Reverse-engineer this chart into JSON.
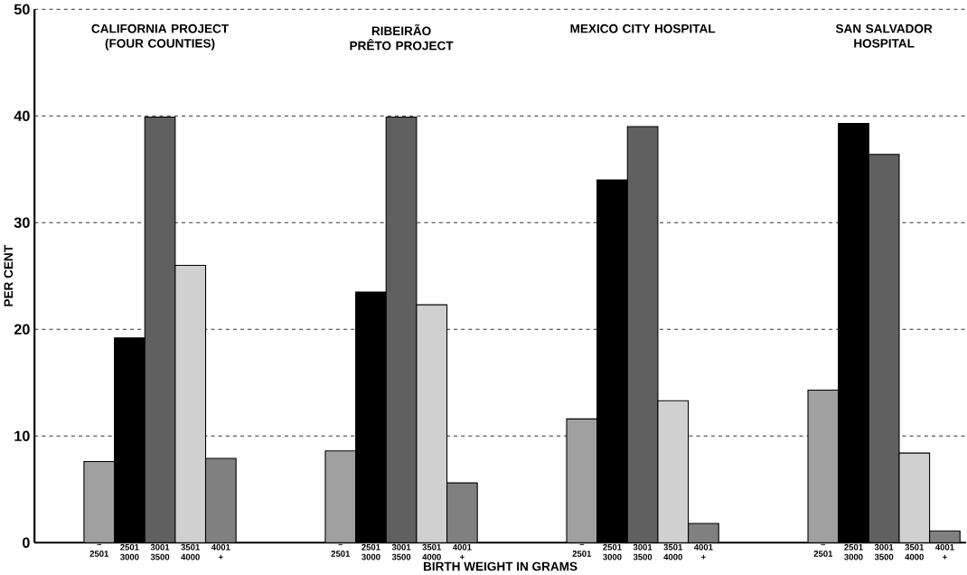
{
  "chart_data": {
    "type": "bar",
    "xlabel": "BIRTH WEIGHT IN GRAMS",
    "ylabel": "PER CENT",
    "categories": [
      "CALIFORNIA PROJECT (FOUR COUNTIES)",
      "RIBEIRÃO PRÊTO PROJECT",
      "MEXICO CITY HOSPITAL",
      "SAN SALVADOR HOSPITAL"
    ],
    "series": [
      {
        "name": "– 2501",
        "color": "#a0a0a0",
        "values": [
          7.6,
          8.6,
          11.6,
          14.3
        ]
      },
      {
        "name": "2501 3000",
        "color": "#000000",
        "values": [
          19.2,
          23.5,
          34.0,
          39.3
        ]
      },
      {
        "name": "3001 3500",
        "color": "#606060",
        "values": [
          39.9,
          39.9,
          39.0,
          36.4
        ]
      },
      {
        "name": "3501 4000",
        "color": "#d0d0d0",
        "values": [
          26.0,
          22.3,
          13.3,
          8.4
        ]
      },
      {
        "name": "4001 +",
        "color": "#808080",
        "values": [
          7.9,
          5.6,
          1.8,
          1.1
        ]
      }
    ],
    "ylim": [
      0,
      50
    ],
    "yticks": [
      0,
      10,
      20,
      30,
      40,
      50
    ],
    "grid": "y"
  }
}
